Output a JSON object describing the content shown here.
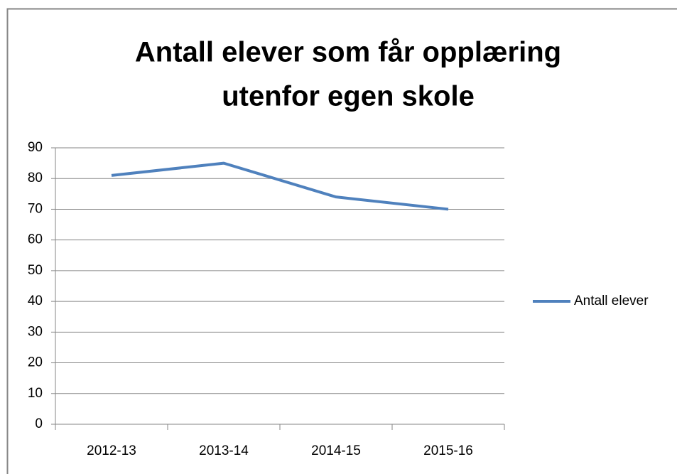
{
  "chart_data": {
    "type": "line",
    "title": [
      "Antall elever som får opplæring",
      "utenfor egen skole"
    ],
    "categories": [
      "2012-13",
      "2013-14",
      "2014-15",
      "2015-16"
    ],
    "series": [
      {
        "name": "Antall elever",
        "color": "#4f81bd",
        "values": [
          81,
          85,
          74,
          70
        ]
      }
    ],
    "ylim": [
      0,
      90
    ],
    "yticks": [
      0,
      10,
      20,
      30,
      40,
      50,
      60,
      70,
      80,
      90
    ],
    "grid": true,
    "legend": "right"
  }
}
